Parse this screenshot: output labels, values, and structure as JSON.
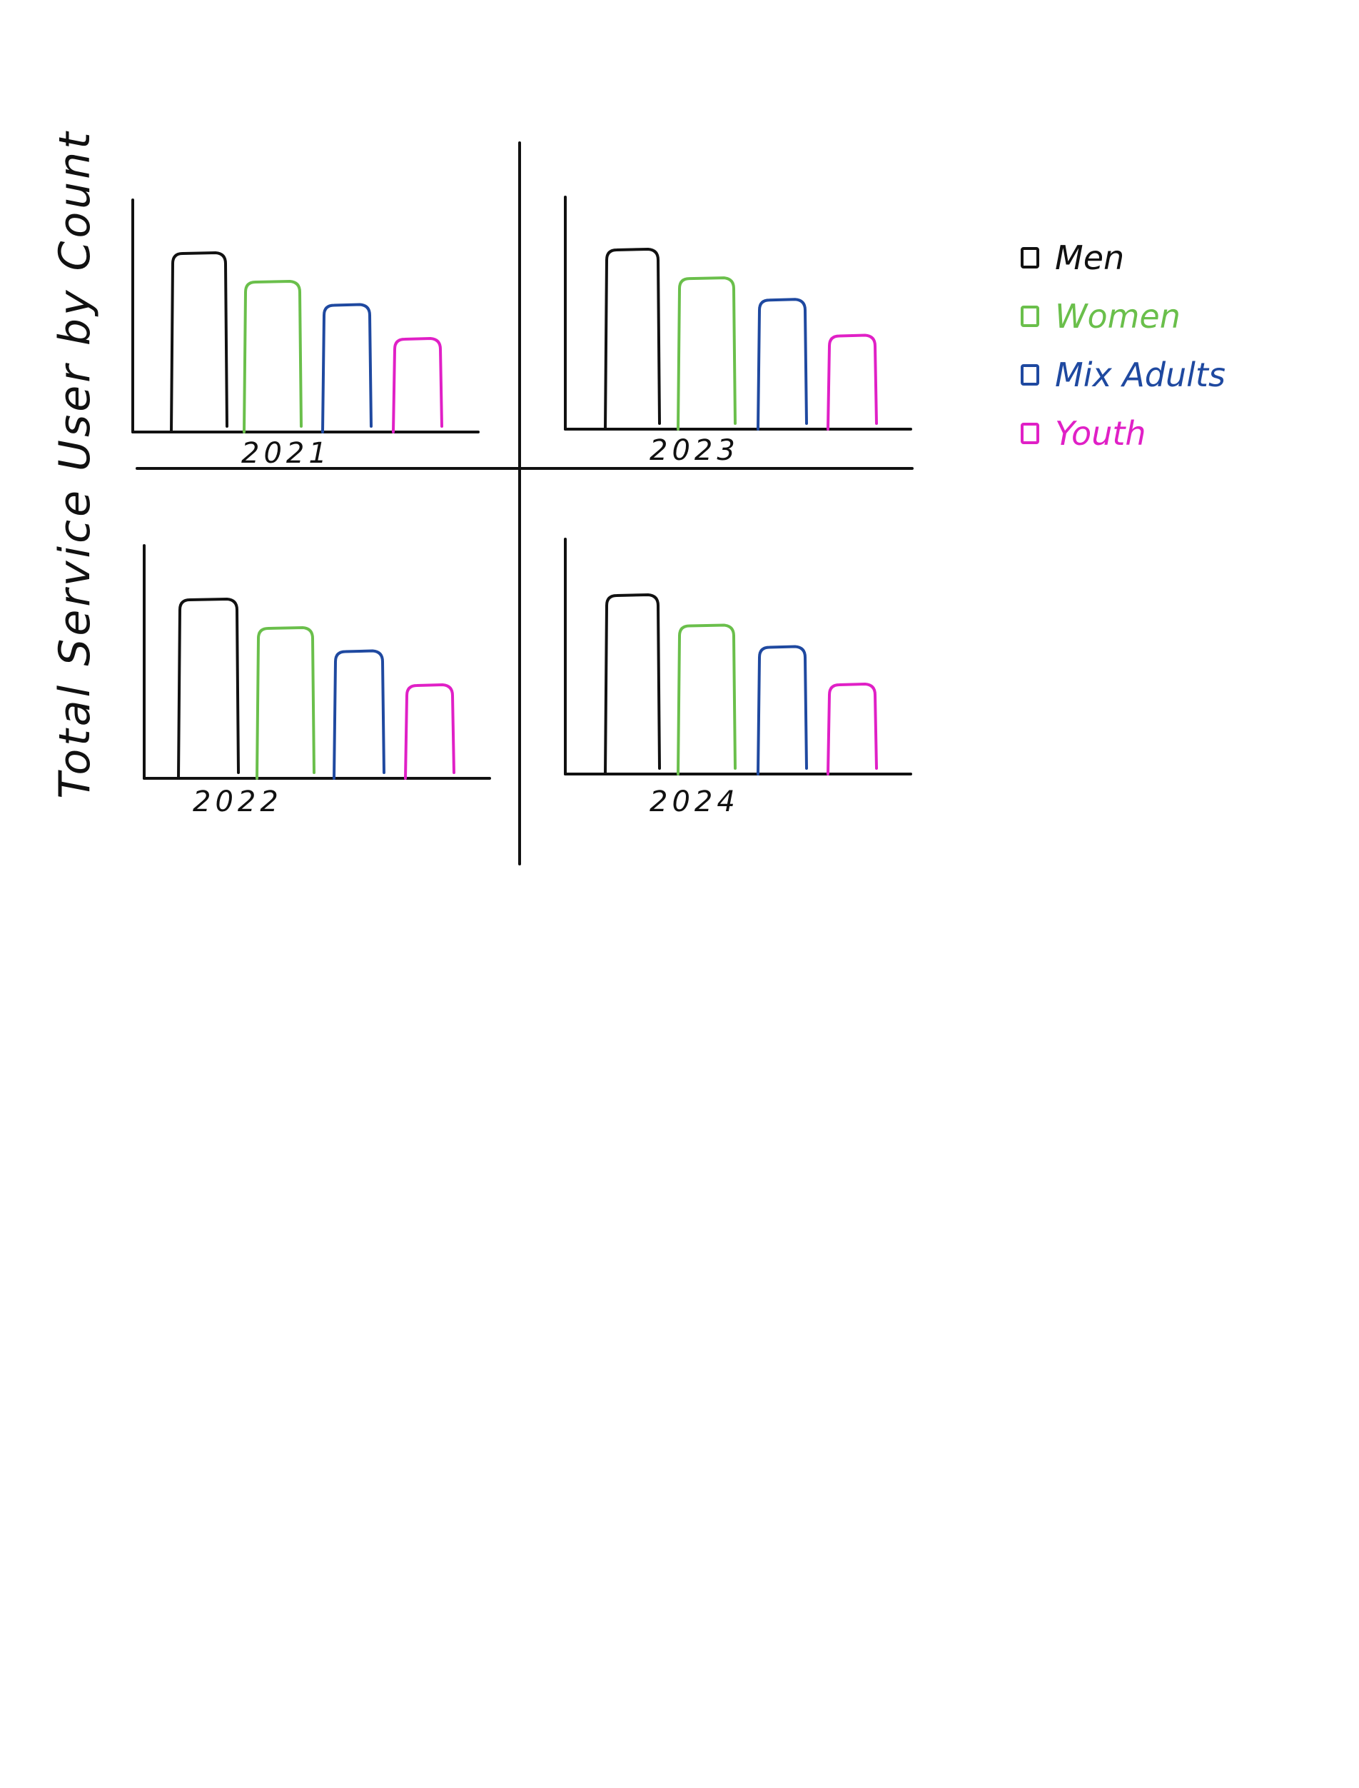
{
  "ylabel": "Total  Service User by Count",
  "colors": {
    "men": "#111111",
    "women": "#6abf4b",
    "mix": "#1f49a0",
    "youth": "#e020c6",
    "axis": "#111111"
  },
  "legend": [
    {
      "label": "Men",
      "color": "#111111"
    },
    {
      "label": "Women",
      "color": "#6abf4b"
    },
    {
      "label": "Mix Adults",
      "color": "#1f49a0"
    },
    {
      "label": "Youth",
      "color": "#e020c6"
    }
  ],
  "chart_data": [
    {
      "type": "bar",
      "title": "",
      "xlabel": "2021",
      "ylabel": "",
      "categories": [
        "Men",
        "Women",
        "Mix Adults",
        "Youth"
      ],
      "values": [
        100,
        84,
        71,
        52
      ],
      "ylim": [
        0,
        100
      ]
    },
    {
      "type": "bar",
      "title": "",
      "xlabel": "2023",
      "ylabel": "",
      "categories": [
        "Men",
        "Women",
        "Mix Adults",
        "Youth"
      ],
      "values": [
        100,
        84,
        72,
        52
      ],
      "ylim": [
        0,
        100
      ]
    },
    {
      "type": "bar",
      "title": "",
      "xlabel": "2022",
      "ylabel": "",
      "categories": [
        "Men",
        "Women",
        "Mix Adults",
        "Youth"
      ],
      "values": [
        100,
        84,
        71,
        52
      ],
      "ylim": [
        0,
        100
      ]
    },
    {
      "type": "bar",
      "title": "",
      "xlabel": "2024",
      "ylabel": "",
      "categories": [
        "Men",
        "Women",
        "Mix Adults",
        "Youth"
      ],
      "values": [
        100,
        83,
        71,
        50
      ],
      "ylim": [
        0,
        100
      ]
    }
  ]
}
